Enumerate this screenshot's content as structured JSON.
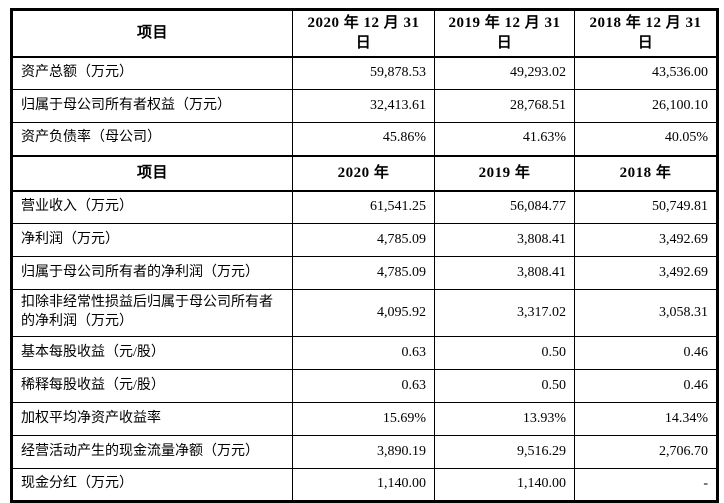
{
  "page": {
    "background": "#ffffff"
  },
  "table": {
    "border_color": "#000000",
    "text_color": "#000000",
    "section1": {
      "header": {
        "label": "项目",
        "y2020": "2020 年 12 月 31 日",
        "y2019": "2019 年 12 月 31 日",
        "y2018": "2018 年 12 月 31 日"
      },
      "rows": [
        {
          "label": "资产总额（万元）",
          "y2020": "59,878.53",
          "y2019": "49,293.02",
          "y2018": "43,536.00"
        },
        {
          "label": "归属于母公司所有者权益（万元）",
          "y2020": "32,413.61",
          "y2019": "28,768.51",
          "y2018": "26,100.10"
        },
        {
          "label": "资产负债率（母公司）",
          "y2020": "45.86%",
          "y2019": "41.63%",
          "y2018": "40.05%"
        }
      ]
    },
    "section2": {
      "header": {
        "label": "项目",
        "y2020": "2020 年",
        "y2019": "2019 年",
        "y2018": "2018 年"
      },
      "rows": [
        {
          "label": "营业收入（万元）",
          "y2020": "61,541.25",
          "y2019": "56,084.77",
          "y2018": "50,749.81"
        },
        {
          "label": "净利润（万元）",
          "y2020": "4,785.09",
          "y2019": "3,808.41",
          "y2018": "3,492.69"
        },
        {
          "label": "归属于母公司所有者的净利润（万元）",
          "y2020": "4,785.09",
          "y2019": "3,808.41",
          "y2018": "3,492.69"
        },
        {
          "label": "扣除非经常性损益后归属于母公司所有者的净利润（万元）",
          "y2020": "4,095.92",
          "y2019": "3,317.02",
          "y2018": "3,058.31"
        },
        {
          "label": "基本每股收益（元/股）",
          "y2020": "0.63",
          "y2019": "0.50",
          "y2018": "0.46"
        },
        {
          "label": "稀释每股收益（元/股）",
          "y2020": "0.63",
          "y2019": "0.50",
          "y2018": "0.46"
        },
        {
          "label": "加权平均净资产收益率",
          "y2020": "15.69%",
          "y2019": "13.93%",
          "y2018": "14.34%"
        },
        {
          "label": "经营活动产生的现金流量净额（万元）",
          "y2020": "3,890.19",
          "y2019": "9,516.29",
          "y2018": "2,706.70"
        },
        {
          "label": "现金分红（万元）",
          "y2020": "1,140.00",
          "y2019": "1,140.00",
          "y2018": "-"
        }
      ]
    }
  }
}
